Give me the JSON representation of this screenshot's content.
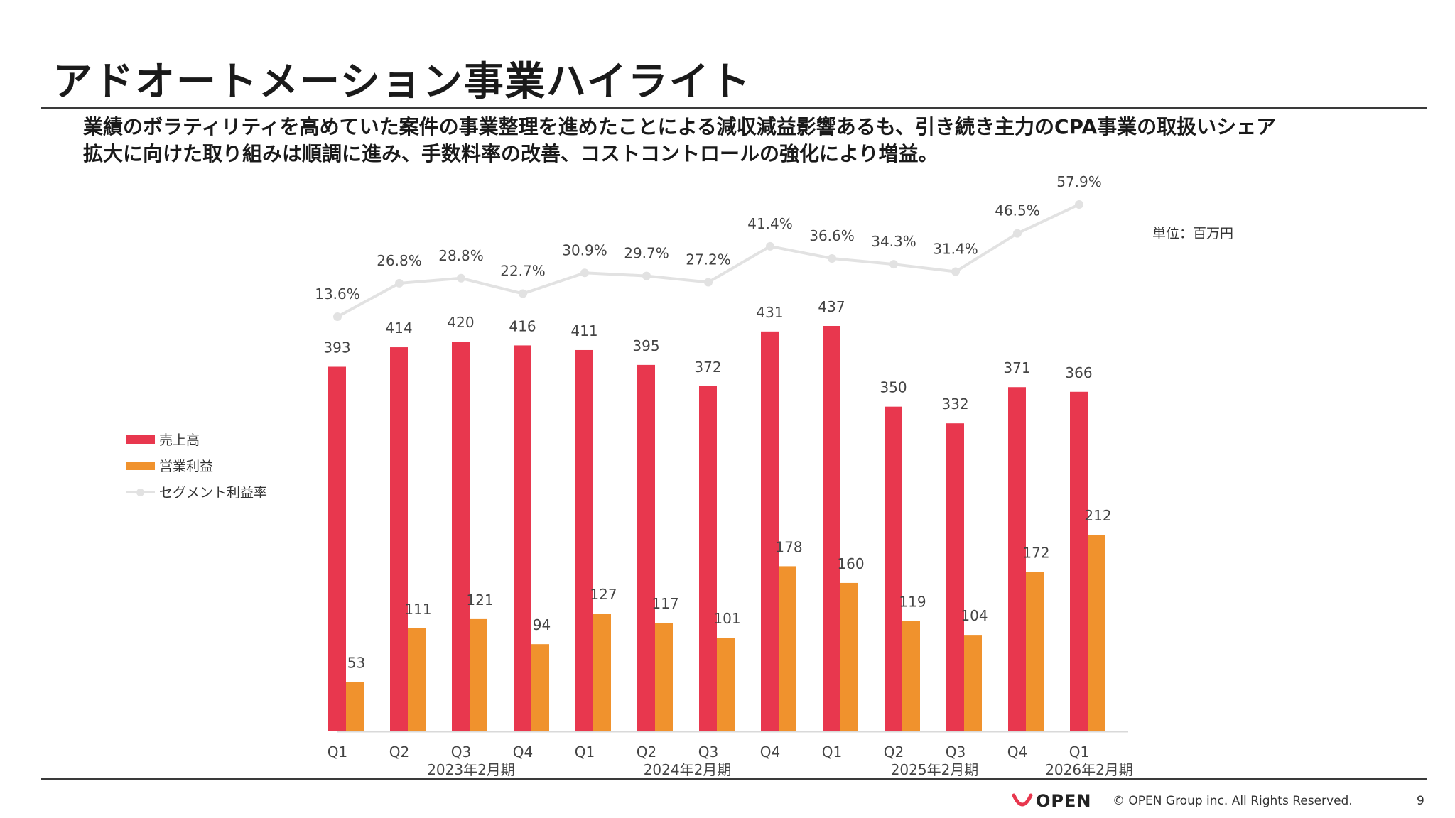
{
  "slide": {
    "title": "アドオートメーション事業ハイライト",
    "summary_line1": "業績のボラティリティを高めていた案件の事業整理を進めたことによる減収減益影響あるも、引き続き主力のCPA事業の取扱いシェア",
    "summary_line2": "拡大に向けた取り組みは順調に進み、手数料率の改善、コストコントロールの強化により増益。",
    "unit": "単位：百万円"
  },
  "legend": {
    "revenue": "売上高",
    "operating_profit": "営業利益",
    "margin": "セグメント利益率"
  },
  "colors": {
    "revenue": "#e8374e",
    "operating_profit": "#f0922d",
    "margin": "#e2e2e2"
  },
  "chart_data": {
    "type": "bar",
    "categories": [
      "Q1",
      "Q2",
      "Q3",
      "Q4",
      "Q1",
      "Q2",
      "Q3",
      "Q4",
      "Q1",
      "Q2",
      "Q3",
      "Q4",
      "Q1"
    ],
    "fiscal_years": [
      {
        "label": "2023年2月期",
        "index": 2
      },
      {
        "label": "2024年2月期",
        "index": 5.5
      },
      {
        "label": "2025年2月期",
        "index": 9.5
      },
      {
        "label": "2026年2月期",
        "index": 12
      }
    ],
    "series": [
      {
        "name": "売上高",
        "type": "bar",
        "values": [
          393,
          414,
          420,
          416,
          411,
          395,
          372,
          431,
          437,
          350,
          332,
          371,
          366
        ]
      },
      {
        "name": "営業利益",
        "type": "bar",
        "values": [
          53,
          111,
          121,
          94,
          127,
          117,
          101,
          178,
          160,
          119,
          104,
          172,
          212
        ]
      },
      {
        "name": "セグメント利益率",
        "type": "line",
        "values": [
          13.6,
          26.8,
          28.8,
          22.7,
          30.9,
          29.7,
          27.2,
          41.4,
          36.6,
          34.3,
          31.4,
          46.5,
          57.9
        ],
        "labels": [
          "13.6%",
          "26.8%",
          "28.8%",
          "22.7%",
          "30.9%",
          "29.7%",
          "27.2%",
          "41.4%",
          "36.6%",
          "34.3%",
          "31.4%",
          "46.5%",
          "57.9%"
        ]
      }
    ],
    "ylim": [
      0,
      437
    ],
    "grid": false,
    "legend_position": "left"
  },
  "footer": {
    "logo": "OPEN",
    "copyright": "© OPEN Group inc. All Rights Reserved.",
    "page": "9"
  }
}
